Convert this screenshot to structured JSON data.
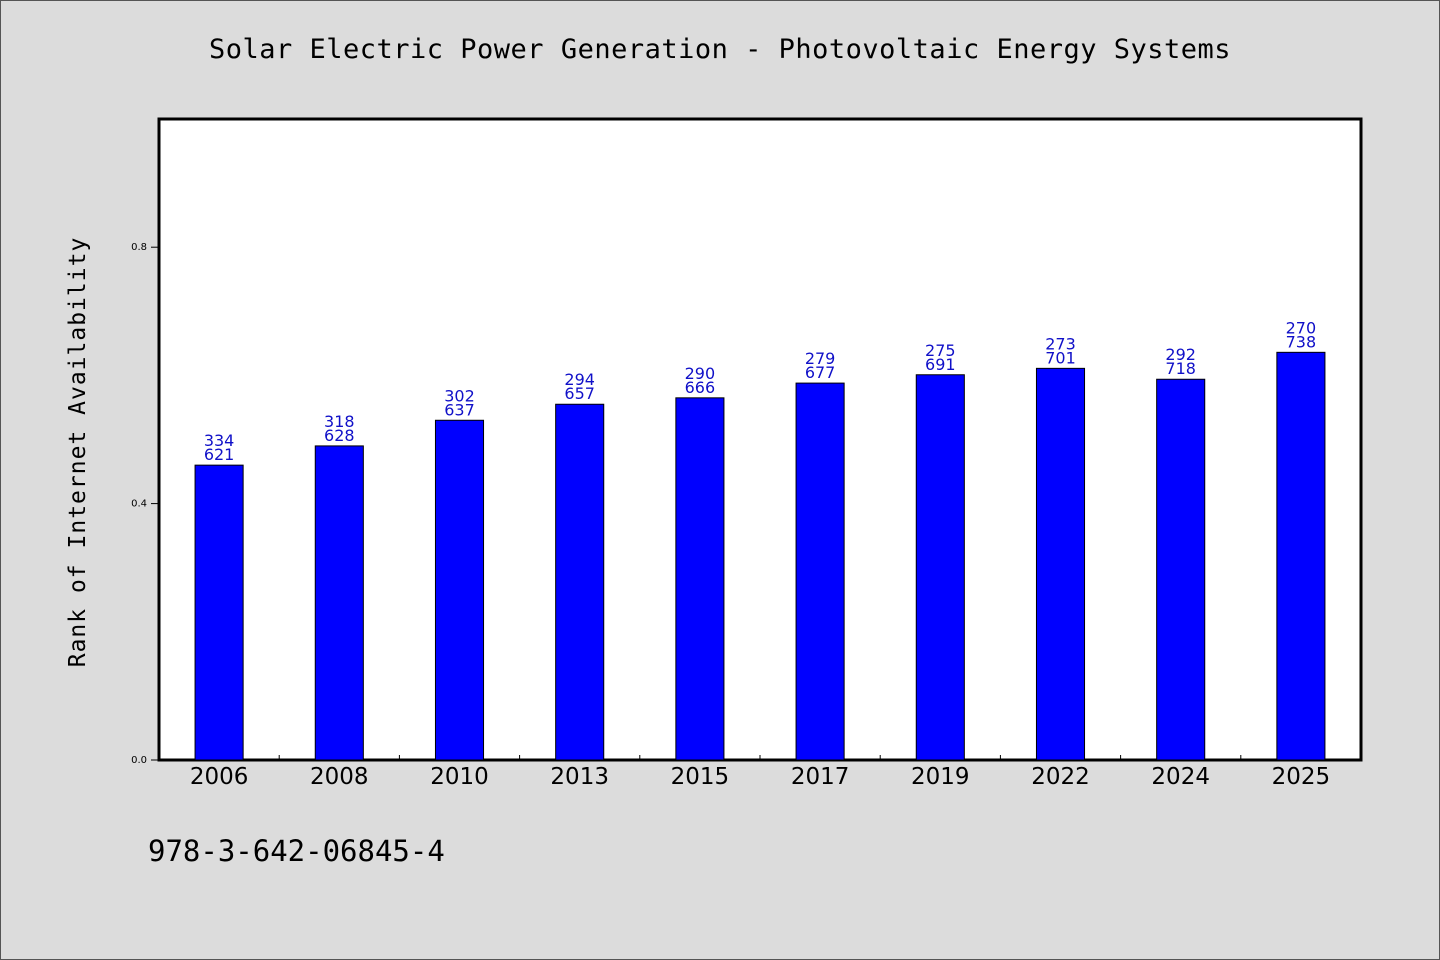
{
  "chart_data": {
    "type": "bar",
    "title": "Solar Electric Power Generation - Photovoltaic Energy Systems",
    "ylabel": "Rank of Internet Availability",
    "xlabel": "",
    "categories": [
      "2006",
      "2008",
      "2010",
      "2013",
      "2015",
      "2017",
      "2019",
      "2022",
      "2024",
      "2025"
    ],
    "values": [
      0.46,
      0.49,
      0.53,
      0.555,
      0.565,
      0.588,
      0.601,
      0.611,
      0.594,
      0.636
    ],
    "data_labels": [
      [
        "334",
        "621"
      ],
      [
        "318",
        "628"
      ],
      [
        "302",
        "637"
      ],
      [
        "294",
        "657"
      ],
      [
        "290",
        "666"
      ],
      [
        "279",
        "677"
      ],
      [
        "275",
        "691"
      ],
      [
        "273",
        "701"
      ],
      [
        "292",
        "718"
      ],
      [
        "270",
        "738"
      ]
    ],
    "ylim": [
      0,
      1.0
    ],
    "yticks": [
      0.0,
      0.4,
      0.8
    ],
    "ytick_labels": [
      "0.0",
      "0.4",
      "0.8"
    ],
    "grid": false,
    "colors": {
      "bar": "#0000ff",
      "label": "#1010c8",
      "background": "#dcdcdc",
      "plot_bg": "#ffffff"
    }
  },
  "footer": {
    "code": "978-3-642-06845-4"
  }
}
